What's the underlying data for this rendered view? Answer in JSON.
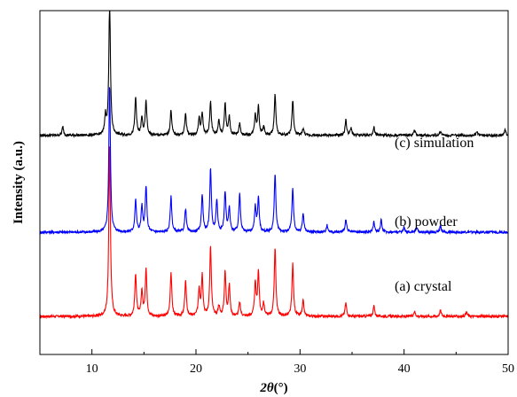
{
  "chart_data": {
    "type": "line",
    "title": "",
    "xlabel": "2θ(°)",
    "xlabel_parts": {
      "symbol": "2θ",
      "unit": "(°)"
    },
    "ylabel": "Intensity (a.u.)",
    "xlim": [
      5,
      50
    ],
    "xticks": [
      10,
      20,
      30,
      40,
      50
    ],
    "yticks_shown": false,
    "grid": false,
    "legend": "none",
    "series": [
      {
        "name": "(a) crystal",
        "color": "#ff0000",
        "baseline": 0.0,
        "peaks": [
          [
            11.7,
            2.05
          ],
          [
            14.2,
            0.5
          ],
          [
            14.8,
            0.3
          ],
          [
            15.2,
            0.56
          ],
          [
            17.6,
            0.52
          ],
          [
            19.0,
            0.42
          ],
          [
            20.3,
            0.32
          ],
          [
            20.6,
            0.48
          ],
          [
            21.4,
            0.82
          ],
          [
            22.2,
            0.12
          ],
          [
            22.8,
            0.52
          ],
          [
            23.2,
            0.36
          ],
          [
            24.2,
            0.16
          ],
          [
            25.7,
            0.38
          ],
          [
            26.0,
            0.52
          ],
          [
            26.5,
            0.15
          ],
          [
            27.6,
            0.82
          ],
          [
            29.3,
            0.62
          ],
          [
            30.3,
            0.18
          ],
          [
            34.4,
            0.16
          ],
          [
            37.1,
            0.12
          ],
          [
            41.0,
            0.06
          ],
          [
            43.5,
            0.07
          ],
          [
            46.0,
            0.05
          ]
        ]
      },
      {
        "name": "(b) powder",
        "color": "#0000ff",
        "baseline": 1.0,
        "peaks": [
          [
            11.7,
            1.75
          ],
          [
            14.2,
            0.38
          ],
          [
            14.8,
            0.3
          ],
          [
            15.2,
            0.54
          ],
          [
            17.6,
            0.42
          ],
          [
            19.0,
            0.28
          ],
          [
            20.6,
            0.45
          ],
          [
            21.4,
            0.74
          ],
          [
            22.0,
            0.38
          ],
          [
            22.8,
            0.48
          ],
          [
            23.2,
            0.28
          ],
          [
            24.2,
            0.46
          ],
          [
            25.7,
            0.3
          ],
          [
            26.0,
            0.4
          ],
          [
            27.6,
            0.7
          ],
          [
            29.3,
            0.52
          ],
          [
            30.3,
            0.22
          ],
          [
            32.6,
            0.08
          ],
          [
            34.4,
            0.15
          ],
          [
            37.1,
            0.12
          ],
          [
            37.8,
            0.14
          ],
          [
            40.0,
            0.06
          ],
          [
            41.2,
            0.06
          ],
          [
            43.5,
            0.07
          ]
        ]
      },
      {
        "name": "(c) simulation",
        "color": "#000000",
        "baseline": 2.15,
        "peaks": [
          [
            7.2,
            0.1
          ],
          [
            11.3,
            0.22
          ],
          [
            11.7,
            1.62
          ],
          [
            14.2,
            0.45
          ],
          [
            14.8,
            0.2
          ],
          [
            15.2,
            0.4
          ],
          [
            17.6,
            0.3
          ],
          [
            19.0,
            0.26
          ],
          [
            20.3,
            0.2
          ],
          [
            20.6,
            0.26
          ],
          [
            21.4,
            0.4
          ],
          [
            22.2,
            0.18
          ],
          [
            22.8,
            0.38
          ],
          [
            23.2,
            0.22
          ],
          [
            24.2,
            0.14
          ],
          [
            25.7,
            0.24
          ],
          [
            26.0,
            0.34
          ],
          [
            26.5,
            0.1
          ],
          [
            27.6,
            0.48
          ],
          [
            29.3,
            0.42
          ],
          [
            30.3,
            0.08
          ],
          [
            34.4,
            0.18
          ],
          [
            34.9,
            0.08
          ],
          [
            37.1,
            0.1
          ],
          [
            41.0,
            0.06
          ],
          [
            43.5,
            0.05
          ],
          [
            47.0,
            0.05
          ],
          [
            49.7,
            0.06
          ]
        ]
      }
    ],
    "peak_width_deg": 0.09
  }
}
